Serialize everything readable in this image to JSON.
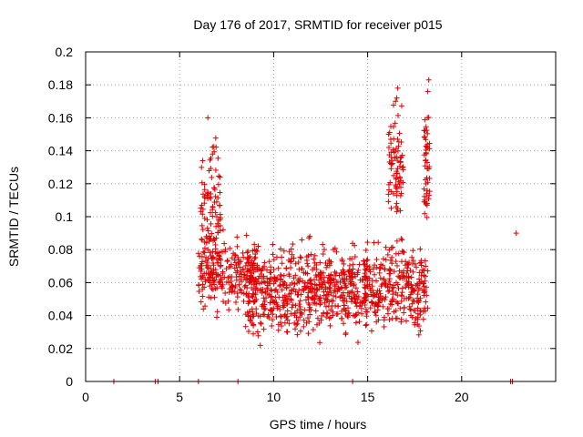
{
  "chart_data": {
    "type": "scatter",
    "title": "Day 176 of 2017, SRMTID for receiver p015",
    "xlabel": "GPS time / hours",
    "ylabel": "SRMTID / TECUs",
    "xlim": [
      0,
      25
    ],
    "ylim": [
      0,
      0.2
    ],
    "xticks": [
      0,
      5,
      10,
      15,
      20
    ],
    "xtick_labels": [
      "0",
      "5",
      "10",
      "15",
      "20"
    ],
    "yticks": [
      0,
      0.02,
      0.04,
      0.06,
      0.08,
      0.1,
      0.12,
      0.14,
      0.16,
      0.18,
      0.2
    ],
    "ytick_labels": [
      "0",
      "0.02",
      "0.04",
      "0.06",
      "0.08",
      "0.1",
      "0.12",
      "0.14",
      "0.16",
      "0.18",
      "0.2"
    ],
    "grid": true,
    "marker": "+",
    "color": "#e00000",
    "series": [
      {
        "name": "SRMTID",
        "x": [
          1.5,
          3.7,
          3.85,
          6.0,
          8.1,
          14.2,
          22.6,
          22.7
        ],
        "y": [
          0.0,
          0.0,
          0.0,
          0.0,
          0.0,
          0.0,
          0.0,
          0.0
        ],
        "features": [
          {
            "note": "early-morning spike",
            "x_range": [
              6.1,
              7.2
            ],
            "y_range": [
              0.03,
              0.16
            ],
            "points": 110
          },
          {
            "note": "morning band",
            "x_range": [
              6.0,
              9.2
            ],
            "y_range": [
              0.035,
              0.095
            ],
            "points": 220
          },
          {
            "note": "midday band",
            "x_range": [
              8.5,
              15.0
            ],
            "y_range": [
              0.017,
              0.093
            ],
            "points": 620
          },
          {
            "note": "late band",
            "x_range": [
              14.8,
              18.2
            ],
            "y_range": [
              0.02,
              0.095
            ],
            "points": 300
          },
          {
            "note": "afternoon spike 1",
            "x_range": [
              16.1,
              16.9
            ],
            "y_range": [
              0.08,
              0.18
            ],
            "points": 80
          },
          {
            "note": "afternoon spike 2",
            "x_range": [
              18.0,
              18.3
            ],
            "y_range": [
              0.08,
              0.185
            ],
            "points": 50
          }
        ],
        "extra_points": [
          [
            22.9,
            0.09
          ],
          [
            18.25,
            0.183
          ],
          [
            18.2,
            0.176
          ],
          [
            16.6,
            0.178
          ],
          [
            16.55,
            0.172
          ],
          [
            6.5,
            0.16
          ]
        ]
      }
    ]
  }
}
